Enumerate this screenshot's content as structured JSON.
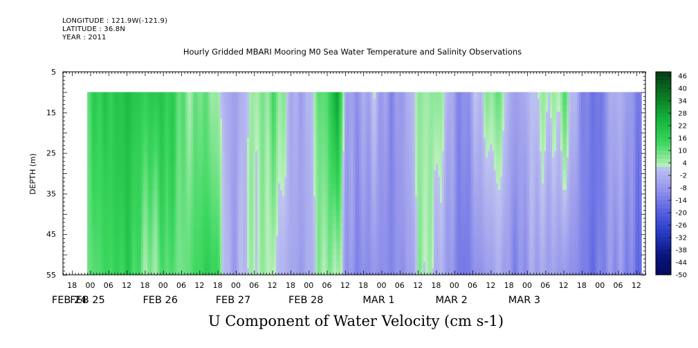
{
  "header": {
    "longitude": "LONGITUDE : 121.9W(-121.9)",
    "latitude": "LATITUDE : 36.8N",
    "year": "YEAR : 2011",
    "title": "Hourly Gridded MBARI Mooring M0 Sea Water Temperature and Salinity Observations",
    "subtitle": "U Component of Water Velocity (cm s-1)"
  },
  "chart_data": {
    "type": "heatmap",
    "title": "Hourly Gridded MBARI Mooring M0 Sea Water Temperature and Salinity Observations",
    "subtitle": "U Component of Water Velocity (cm s-1)",
    "ylabel": "DEPTH (m)",
    "xlabel": "",
    "y_axis": {
      "ylim": [
        5,
        55
      ],
      "inverted": true,
      "ticks": [
        5,
        15,
        25,
        35,
        45,
        55
      ]
    },
    "x_axis": {
      "xlim_hours_from_feb24_00": [
        -9,
        183
      ],
      "hour_labels": [
        "18",
        "00",
        "06",
        "12",
        "18",
        "00",
        "06",
        "12",
        "18",
        "00",
        "06",
        "12",
        "18",
        "00",
        "06",
        "12",
        "18",
        "00",
        "06",
        "12",
        "18",
        "00",
        "06",
        "12",
        "18",
        "00",
        "06",
        "12",
        "18",
        "00",
        "06",
        "12"
      ],
      "hour_label_positions_h": [
        -6,
        0,
        6,
        12,
        18,
        24,
        30,
        36,
        42,
        48,
        54,
        60,
        66,
        72,
        78,
        84,
        90,
        96,
        102,
        108,
        114,
        120,
        126,
        132,
        138,
        144,
        150,
        156,
        162,
        168,
        174,
        180
      ],
      "date_labels": [
        "FEB 24",
        "FEB 25",
        "FEB 26",
        "FEB 27",
        "FEB 28",
        "MAR  1",
        "MAR  2",
        "MAR  3"
      ],
      "date_label_positions_h": [
        -6,
        0,
        24,
        48,
        72,
        96,
        120,
        144
      ]
    },
    "data_extent": {
      "time_start_h": -1,
      "time_end_h": 181,
      "depth_top": 10,
      "depth_bottom": 55
    },
    "colorbar": {
      "labels": [
        "46",
        "40",
        "34",
        "28",
        "22",
        "16",
        "10",
        "4",
        "-2",
        "-8",
        "-14",
        "-20",
        "-26",
        "-32",
        "-38",
        "-44",
        "-50"
      ],
      "levels": [
        48,
        46,
        44,
        42,
        40,
        38,
        36,
        34,
        32,
        30,
        28,
        26,
        24,
        22,
        20,
        18,
        16,
        14,
        12,
        10,
        8,
        6,
        4,
        2,
        0,
        -2,
        -4,
        -6,
        -8,
        -10,
        -12,
        -14,
        -16,
        -18,
        -20,
        -22,
        -24,
        -26,
        -28,
        -30,
        -32,
        -34,
        -36,
        -38,
        -40,
        -42,
        -44,
        -46,
        -48,
        -50
      ]
    },
    "field_profile": {
      "note_hours": [
        0,
        3,
        6,
        9,
        12,
        15,
        18,
        21,
        24,
        27,
        30,
        33,
        36,
        39,
        42,
        45,
        48,
        51,
        54,
        57,
        60,
        63,
        66,
        69,
        72,
        75,
        78,
        81,
        84,
        87,
        90,
        93,
        96,
        99,
        102,
        105,
        108,
        111,
        114,
        117,
        120,
        123,
        126,
        129,
        132,
        135,
        138,
        141,
        144,
        147,
        150,
        153,
        156,
        159,
        162,
        165,
        168,
        171,
        174,
        177,
        180
      ],
      "upper_u": [
        14,
        16,
        18,
        20,
        22,
        18,
        16,
        20,
        18,
        14,
        10,
        8,
        10,
        6,
        4,
        -4,
        -6,
        0,
        6,
        8,
        10,
        4,
        -2,
        -4,
        -2,
        10,
        12,
        30,
        -6,
        -10,
        -4,
        2,
        -8,
        -12,
        -6,
        -2,
        6,
        4,
        8,
        2,
        -10,
        -14,
        0,
        4,
        6,
        8,
        -4,
        -6,
        -2,
        2,
        6,
        4,
        8,
        -2,
        -10,
        -14,
        -16,
        -4,
        -2,
        -6,
        -14
      ],
      "lower_u": [
        10,
        12,
        14,
        16,
        18,
        10,
        6,
        8,
        12,
        10,
        8,
        12,
        14,
        16,
        12,
        -2,
        -6,
        0,
        4,
        6,
        2,
        -2,
        -4,
        -6,
        -4,
        4,
        6,
        8,
        -8,
        -12,
        -10,
        -8,
        -10,
        -12,
        -8,
        -6,
        4,
        2,
        0,
        -4,
        -12,
        -16,
        -10,
        -8,
        -6,
        -4,
        -8,
        -10,
        -8,
        -6,
        -4,
        -6,
        -8,
        -10,
        -12,
        -16,
        -14,
        -10,
        -6,
        -10,
        -18
      ]
    }
  }
}
